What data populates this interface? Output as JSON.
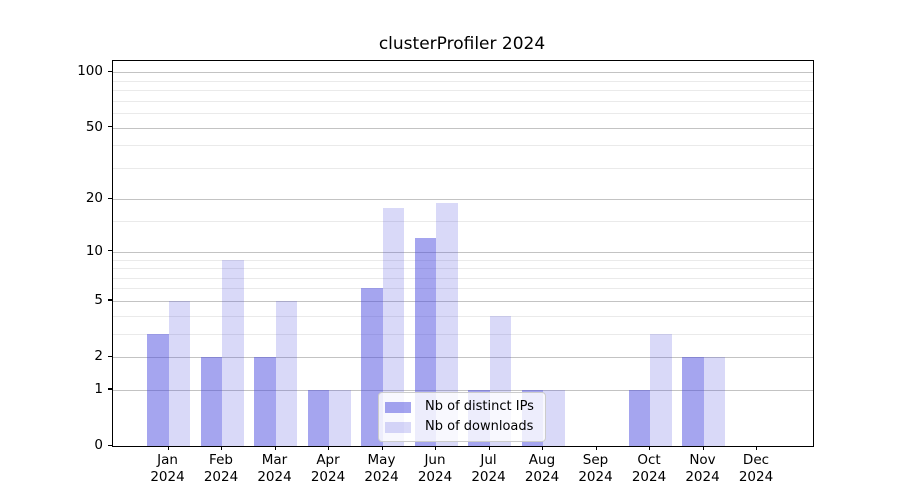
{
  "chart_data": {
    "type": "bar",
    "title": "clusterProfiler 2024",
    "x_axis": {
      "months": [
        "Jan",
        "Feb",
        "Mar",
        "Apr",
        "May",
        "Jun",
        "Jul",
        "Aug",
        "Sep",
        "Oct",
        "Nov",
        "Dec"
      ],
      "year": "2024"
    },
    "y_axis": {
      "scale": "log1p",
      "ticks": [
        0,
        1,
        2,
        5,
        10,
        20,
        50,
        100
      ],
      "minor_gridlines": [
        3,
        4,
        6,
        7,
        8,
        9,
        15,
        30,
        40,
        60,
        70,
        80,
        90
      ],
      "ymin": 0,
      "ymax": 115
    },
    "series": [
      {
        "name": "Nb of distinct IPs",
        "color": "rgba(67,67,222,0.48)",
        "values": [
          3,
          2,
          2,
          1,
          6,
          12,
          1,
          1,
          0,
          1,
          2,
          0
        ]
      },
      {
        "name": "Nb of downloads",
        "color": "rgba(67,67,222,0.20)",
        "values": [
          5,
          9,
          5,
          1,
          18,
          19,
          4,
          1,
          0,
          3,
          2,
          0
        ]
      }
    ],
    "grid": true,
    "legend_position": "lower center"
  },
  "colors": {
    "background": "#ffffff",
    "axis": "#000000",
    "major_grid": "#c3c3c3",
    "minor_grid": "#eaeaea",
    "text": "#000000",
    "legend_border": "#cccccc",
    "legend_background": "rgba(255,255,255,0.8)"
  }
}
